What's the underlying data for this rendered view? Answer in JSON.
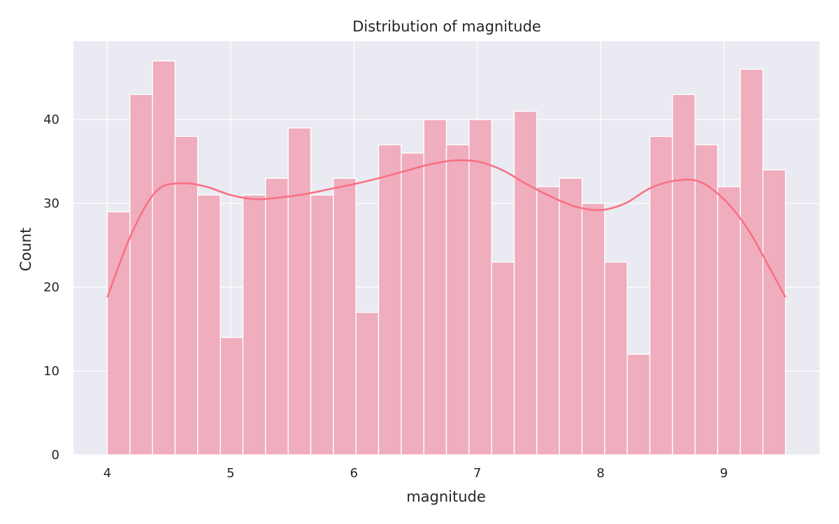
{
  "chart_data": {
    "type": "bar",
    "title": "Distribution of magnitude",
    "xlabel": "magnitude",
    "ylabel": "Count",
    "xlim": [
      3.725,
      9.775
    ],
    "ylim": [
      0,
      49.35
    ],
    "x_ticks": [
      4,
      5,
      6,
      7,
      8,
      9
    ],
    "y_ticks": [
      0,
      10,
      20,
      30,
      40
    ],
    "grid": true,
    "bin_start": 4.0,
    "bin_end": 9.5,
    "bins": 30,
    "counts": [
      29,
      43,
      47,
      38,
      31,
      14,
      31,
      33,
      39,
      31,
      33,
      17,
      37,
      36,
      40,
      37,
      40,
      23,
      41,
      32,
      33,
      30,
      23,
      12,
      38,
      43,
      37,
      32,
      46,
      34
    ],
    "kde": {
      "x": [
        4.0,
        4.2,
        4.4,
        4.6,
        4.8,
        5.0,
        5.2,
        5.4,
        5.6,
        5.8,
        6.0,
        6.2,
        6.4,
        6.6,
        6.8,
        7.0,
        7.2,
        7.4,
        7.6,
        7.8,
        8.0,
        8.2,
        8.4,
        8.6,
        8.8,
        9.0,
        9.2,
        9.4,
        9.5
      ],
      "y": [
        18.8,
        26.5,
        31.5,
        32.4,
        32.0,
        31.0,
        30.5,
        30.7,
        31.1,
        31.7,
        32.3,
        33.0,
        33.8,
        34.6,
        35.1,
        35.0,
        34.0,
        32.3,
        30.8,
        29.6,
        29.2,
        30.0,
        31.8,
        32.7,
        32.6,
        30.5,
        26.8,
        21.5,
        18.8
      ]
    },
    "colors": {
      "background": "#eaeaf2",
      "bar_fill": "#f0adbd",
      "bar_edge": "#ffffff",
      "kde_line": "#f77183",
      "grid": "#ffffff",
      "text": "#262626"
    }
  }
}
